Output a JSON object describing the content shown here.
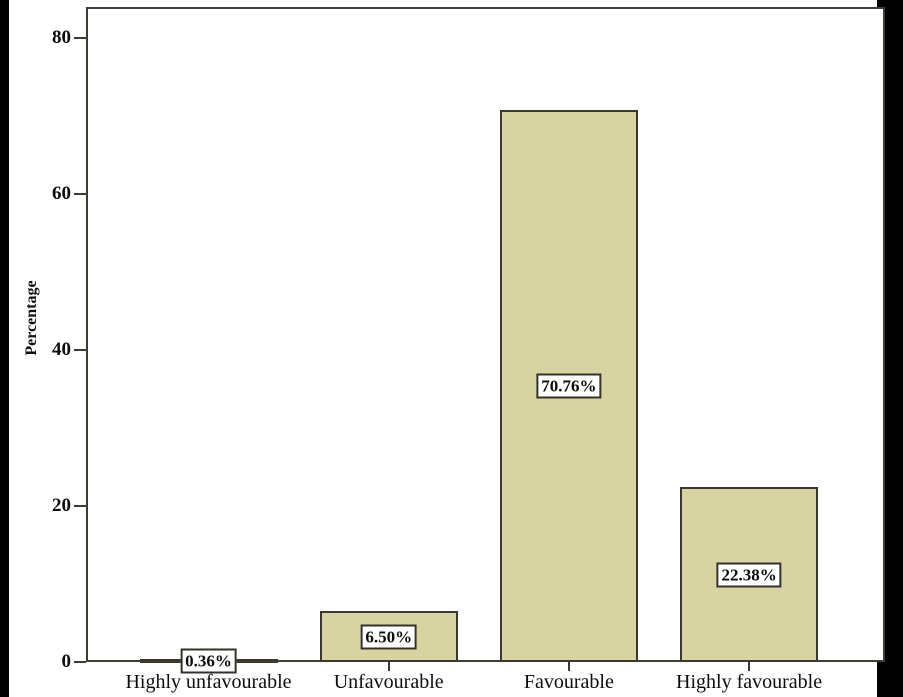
{
  "figure": {
    "outer_background_color": "#000000",
    "panel_background_color": "#ffffff"
  },
  "chart_data": {
    "type": "bar",
    "title": "",
    "xlabel": "",
    "ylabel": "Percentage",
    "categories": [
      "Highly unfavourable",
      "Unfavourable",
      "Favourable",
      "Highly favourable"
    ],
    "values": [
      0.36,
      6.5,
      70.76,
      22.38
    ],
    "value_labels": [
      "0.36%",
      "6.50%",
      "70.76%",
      "22.38%"
    ],
    "yticks": [
      0,
      20,
      40,
      60,
      80
    ],
    "ylim": [
      0,
      84
    ],
    "grid": false,
    "legend": false,
    "bar_color": "#d8d3a2",
    "bar_border_color": "#3b392d",
    "axis_color": "#3c3b35",
    "value_label_box_color": "#ffffff",
    "value_label_border_color": "#33312a",
    "text_color": "#0c0c0c"
  }
}
